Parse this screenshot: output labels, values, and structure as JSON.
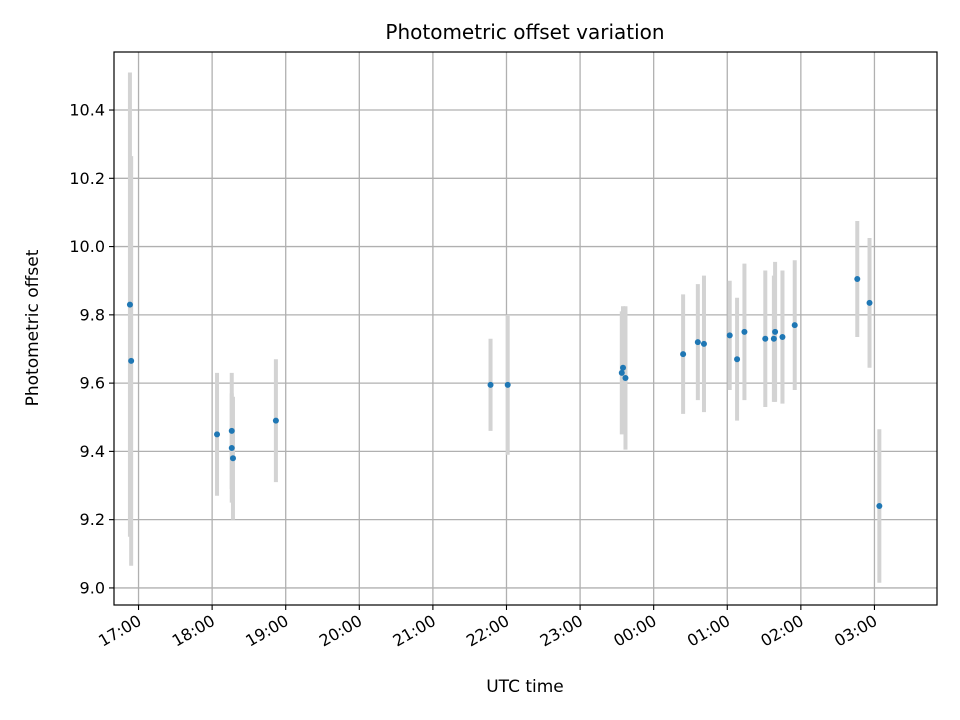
{
  "chart_data": {
    "type": "scatter",
    "title": "Photometric offset variation",
    "xlabel": "UTC time",
    "ylabel": "Photometric offset",
    "grid": true,
    "ylim": [
      8.95,
      10.57
    ],
    "xlim": [
      "16:40",
      "03:51"
    ],
    "y_ticks": [
      9.0,
      9.2,
      9.4,
      9.6,
      9.8,
      10.0,
      10.2,
      10.4
    ],
    "y_tick_labels": [
      "9.0",
      "9.2",
      "9.4",
      "9.6",
      "9.8",
      "10.0",
      "10.2",
      "10.4"
    ],
    "x_ticks": [
      "17:00",
      "18:00",
      "19:00",
      "20:00",
      "21:00",
      "22:00",
      "23:00",
      "00:00",
      "01:00",
      "02:00",
      "03:00"
    ],
    "x_tick_labels": [
      "17:00",
      "18:00",
      "19:00",
      "20:00",
      "21:00",
      "22:00",
      "23:00",
      "00:00",
      "01:00",
      "02:00",
      "03:00"
    ],
    "point_color": "#1f77b4",
    "errorbar_color": "#d3d3d3",
    "points": [
      {
        "x": "16:53",
        "y": 9.83,
        "err": 0.68
      },
      {
        "x": "16:54",
        "y": 9.665,
        "err": 0.6
      },
      {
        "x": "18:04",
        "y": 9.45,
        "err": 0.18
      },
      {
        "x": "18:16",
        "y": 9.46,
        "err": 0.17
      },
      {
        "x": "18:16",
        "y": 9.41,
        "err": 0.16
      },
      {
        "x": "18:17",
        "y": 9.38,
        "err": 0.18
      },
      {
        "x": "18:52",
        "y": 9.49,
        "err": 0.18
      },
      {
        "x": "21:47",
        "y": 9.595,
        "err": 0.135
      },
      {
        "x": "22:01",
        "y": 9.595,
        "err": 0.205
      },
      {
        "x": "23:34",
        "y": 9.63,
        "err": 0.18
      },
      {
        "x": "23:35",
        "y": 9.645,
        "err": 0.18
      },
      {
        "x": "23:37",
        "y": 9.615,
        "err": 0.21
      },
      {
        "x": "00:24",
        "y": 9.685,
        "err": 0.175
      },
      {
        "x": "00:36",
        "y": 9.72,
        "err": 0.17
      },
      {
        "x": "00:41",
        "y": 9.715,
        "err": 0.2
      },
      {
        "x": "01:02",
        "y": 9.74,
        "err": 0.16
      },
      {
        "x": "01:08",
        "y": 9.67,
        "err": 0.18
      },
      {
        "x": "01:14",
        "y": 9.75,
        "err": 0.2
      },
      {
        "x": "01:31",
        "y": 9.73,
        "err": 0.2
      },
      {
        "x": "01:38",
        "y": 9.73,
        "err": 0.185
      },
      {
        "x": "01:39",
        "y": 9.75,
        "err": 0.205
      },
      {
        "x": "01:45",
        "y": 9.735,
        "err": 0.195
      },
      {
        "x": "01:55",
        "y": 9.77,
        "err": 0.19
      },
      {
        "x": "02:46",
        "y": 9.905,
        "err": 0.17
      },
      {
        "x": "02:56",
        "y": 9.835,
        "err": 0.19
      },
      {
        "x": "03:04",
        "y": 9.24,
        "err": 0.225
      }
    ]
  }
}
